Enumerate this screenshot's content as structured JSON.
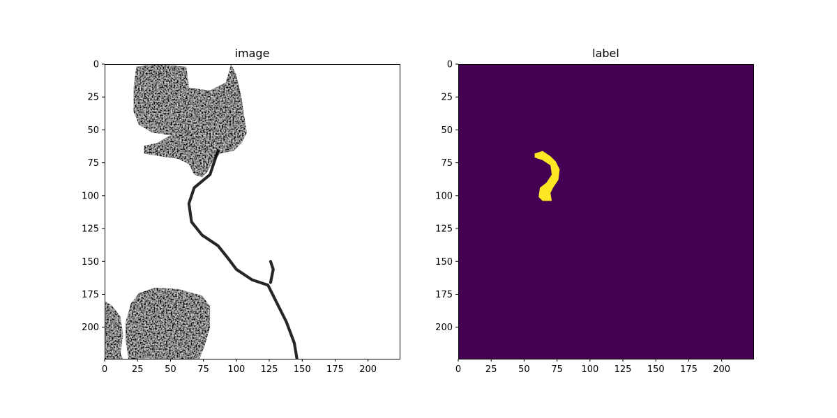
{
  "chart_data": [
    {
      "type": "heatmap",
      "title": "image",
      "colormap": "gray",
      "xlim": [
        0,
        224
      ],
      "ylim": [
        224,
        0
      ],
      "xticks": [
        0,
        25,
        50,
        75,
        100,
        125,
        150,
        175,
        200
      ],
      "yticks": [
        0,
        25,
        50,
        75,
        100,
        125,
        150,
        175,
        200
      ],
      "colors": {
        "background": "#ffffff",
        "tissue": "#000000"
      },
      "regions": [
        {
          "name": "upper-left-dark-blob",
          "outline": [
            [
              24,
              2
            ],
            [
              40,
              0
            ],
            [
              62,
              2
            ],
            [
              64,
              18
            ],
            [
              80,
              20
            ],
            [
              92,
              14
            ],
            [
              96,
              0
            ],
            [
              100,
              8
            ],
            [
              104,
              26
            ],
            [
              106,
              40
            ],
            [
              108,
              52
            ],
            [
              104,
              60
            ],
            [
              98,
              66
            ],
            [
              88,
              68
            ],
            [
              82,
              74
            ],
            [
              78,
              82
            ],
            [
              74,
              86
            ],
            [
              68,
              84
            ],
            [
              64,
              76
            ],
            [
              56,
              72
            ],
            [
              42,
              70
            ],
            [
              30,
              68
            ],
            [
              30,
              62
            ],
            [
              40,
              60
            ],
            [
              50,
              54
            ],
            [
              36,
              52
            ],
            [
              26,
              46
            ],
            [
              22,
              36
            ],
            [
              22,
              18
            ]
          ]
        },
        {
          "name": "lower-left-dark-blob",
          "outline": [
            [
              20,
              182
            ],
            [
              26,
              174
            ],
            [
              38,
              170
            ],
            [
              56,
              171
            ],
            [
              74,
              176
            ],
            [
              80,
              184
            ],
            [
              80,
              200
            ],
            [
              76,
              214
            ],
            [
              72,
              224
            ],
            [
              18,
              224
            ],
            [
              16,
              210
            ],
            [
              16,
              196
            ]
          ]
        },
        {
          "name": "edge-sliver-left",
          "outline": [
            [
              0,
              180
            ],
            [
              6,
              184
            ],
            [
              12,
              192
            ],
            [
              14,
              206
            ],
            [
              12,
              220
            ],
            [
              14,
              224
            ],
            [
              0,
              224
            ]
          ]
        }
      ],
      "strands": [
        {
          "name": "vertical-strand",
          "points": [
            [
              86,
              66
            ],
            [
              80,
              84
            ],
            [
              68,
              94
            ],
            [
              64,
              106
            ],
            [
              66,
              120
            ],
            [
              74,
              130
            ],
            [
              86,
              138
            ],
            [
              94,
              148
            ],
            [
              100,
              156
            ],
            [
              112,
              164
            ],
            [
              124,
              168
            ],
            [
              130,
              180
            ],
            [
              138,
              196
            ],
            [
              144,
              212
            ],
            [
              146,
              224
            ]
          ]
        },
        {
          "name": "side-strand",
          "points": [
            [
              126,
              166
            ],
            [
              128,
              156
            ],
            [
              126,
              150
            ]
          ]
        }
      ]
    },
    {
      "type": "heatmap",
      "title": "label",
      "colormap": "viridis",
      "xlim": [
        0,
        224
      ],
      "ylim": [
        224,
        0
      ],
      "xticks": [
        0,
        25,
        50,
        75,
        100,
        125,
        150,
        175,
        200
      ],
      "yticks": [
        0,
        25,
        50,
        75,
        100,
        125,
        150,
        175,
        200
      ],
      "colors": {
        "background": "#440154",
        "foreground": "#fde725"
      },
      "regions": [
        {
          "name": "label-mask",
          "outline": [
            [
              58,
              68
            ],
            [
              64,
              66
            ],
            [
              70,
              70
            ],
            [
              74,
              74
            ],
            [
              77,
              80
            ],
            [
              76,
              88
            ],
            [
              72,
              94
            ],
            [
              70,
              98
            ],
            [
              71,
              104
            ],
            [
              64,
              104
            ],
            [
              61,
              101
            ],
            [
              62,
              94
            ],
            [
              67,
              90
            ],
            [
              71,
              84
            ],
            [
              70,
              77
            ],
            [
              64,
              73
            ],
            [
              58,
              71
            ]
          ]
        }
      ]
    }
  ]
}
